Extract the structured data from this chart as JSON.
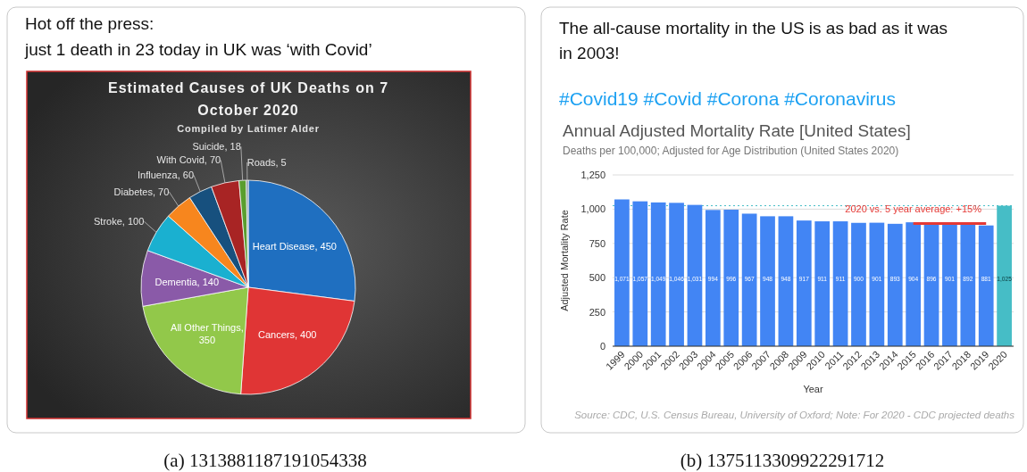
{
  "chart_data": [
    {
      "type": "pie",
      "title": "Estimated Causes of UK Deaths on 7 October 2020",
      "subtitle": "Compiled by Latimer Alder",
      "categories": [
        "Heart Disease, 450",
        "Cancers, 400",
        "All Other Things, 350",
        "Dementia, 140",
        "Stroke, 100",
        "Diabetes, 70",
        "Influenza, 60",
        "With Covid, 70",
        "Suicide, 18",
        "Roads, 5"
      ],
      "values": [
        450,
        400,
        350,
        140,
        100,
        70,
        60,
        70,
        18,
        5
      ],
      "colors": [
        "#1f6fc0",
        "#e03535",
        "#92c84a",
        "#8a5aa8",
        "#1ab0d0",
        "#f7861e",
        "#17507e",
        "#a82424",
        "#5a9e2e",
        "#7a8a9a"
      ],
      "annotations": [
        "Hot off the press:",
        "just 1 death in 23 today in UK was ‘with Covid’",
        "(a) 1313881187191054338"
      ]
    },
    {
      "type": "bar",
      "title": "Annual Adjusted Mortality Rate [United States]",
      "subtitle": "Deaths per 100,000; Adjusted for Age Distribution (United States 2020)",
      "xlabel": "Year",
      "ylabel": "Adjusted Mortality Rate",
      "categories": [
        "1999",
        "2000",
        "2001",
        "2002",
        "2003",
        "2004",
        "2005",
        "2006",
        "2007",
        "2008",
        "2009",
        "2010",
        "2011",
        "2012",
        "2013",
        "2014",
        "2015",
        "2016",
        "2017",
        "2018",
        "2019",
        "2020"
      ],
      "series": [
        {
          "type": "bar",
          "values": [
            1071,
            1057,
            1049,
            1046,
            1031,
            994,
            996,
            967,
            948,
            948,
            917,
            911,
            911,
            900,
            901,
            893,
            904,
            896,
            901,
            892,
            881,
            1025
          ],
          "colors": [
            "#4285f4",
            "#4285f4",
            "#4285f4",
            "#4285f4",
            "#4285f4",
            "#4285f4",
            "#4285f4",
            "#4285f4",
            "#4285f4",
            "#4285f4",
            "#4285f4",
            "#4285f4",
            "#4285f4",
            "#4285f4",
            "#4285f4",
            "#4285f4",
            "#4285f4",
            "#4285f4",
            "#4285f4",
            "#4285f4",
            "#4285f4",
            "#46bdc6"
          ],
          "value_labels": [
            "1,071",
            "1,057",
            "1,049",
            "1,046",
            "1,031",
            "994",
            "996",
            "967",
            "948",
            "948",
            "917",
            "911",
            "911",
            "900",
            "901",
            "893",
            "904",
            "896",
            "901",
            "892",
            "881",
            "1,025"
          ]
        },
        {
          "type": "line",
          "values": [
            null,
            null,
            null,
            null,
            null,
            null,
            null,
            null,
            null,
            null,
            null,
            null,
            null,
            null,
            null,
            null,
            895,
            895,
            895,
            895,
            895,
            null
          ],
          "color": "#e53935"
        }
      ],
      "ylim": [
        0,
        1250
      ],
      "yticks": [
        0,
        250,
        500,
        750,
        {
          "value": 1000,
          "label": "1,000"
        },
        {
          "value": 1250,
          "label": "1,250"
        }
      ],
      "grid": "y",
      "ref_lines": [
        {
          "axis": "y",
          "value": 1025,
          "color": "#46bdc6",
          "line_style": "dotted"
        }
      ],
      "annotations": [
        "The all-cause mortality in the US is as bad as it was",
        "in 2003!",
        "#Covid19 #Covid #Corona #Coronavirus",
        {
          "text": "2020 vs. 5 year average: +15%",
          "x": "2015",
          "y": 1000
        },
        "Source: CDC, U.S. Census Bureau, University of Oxford; Note: For 2020 - CDC projected deaths",
        "(b) 1375113309922291712"
      ]
    }
  ]
}
